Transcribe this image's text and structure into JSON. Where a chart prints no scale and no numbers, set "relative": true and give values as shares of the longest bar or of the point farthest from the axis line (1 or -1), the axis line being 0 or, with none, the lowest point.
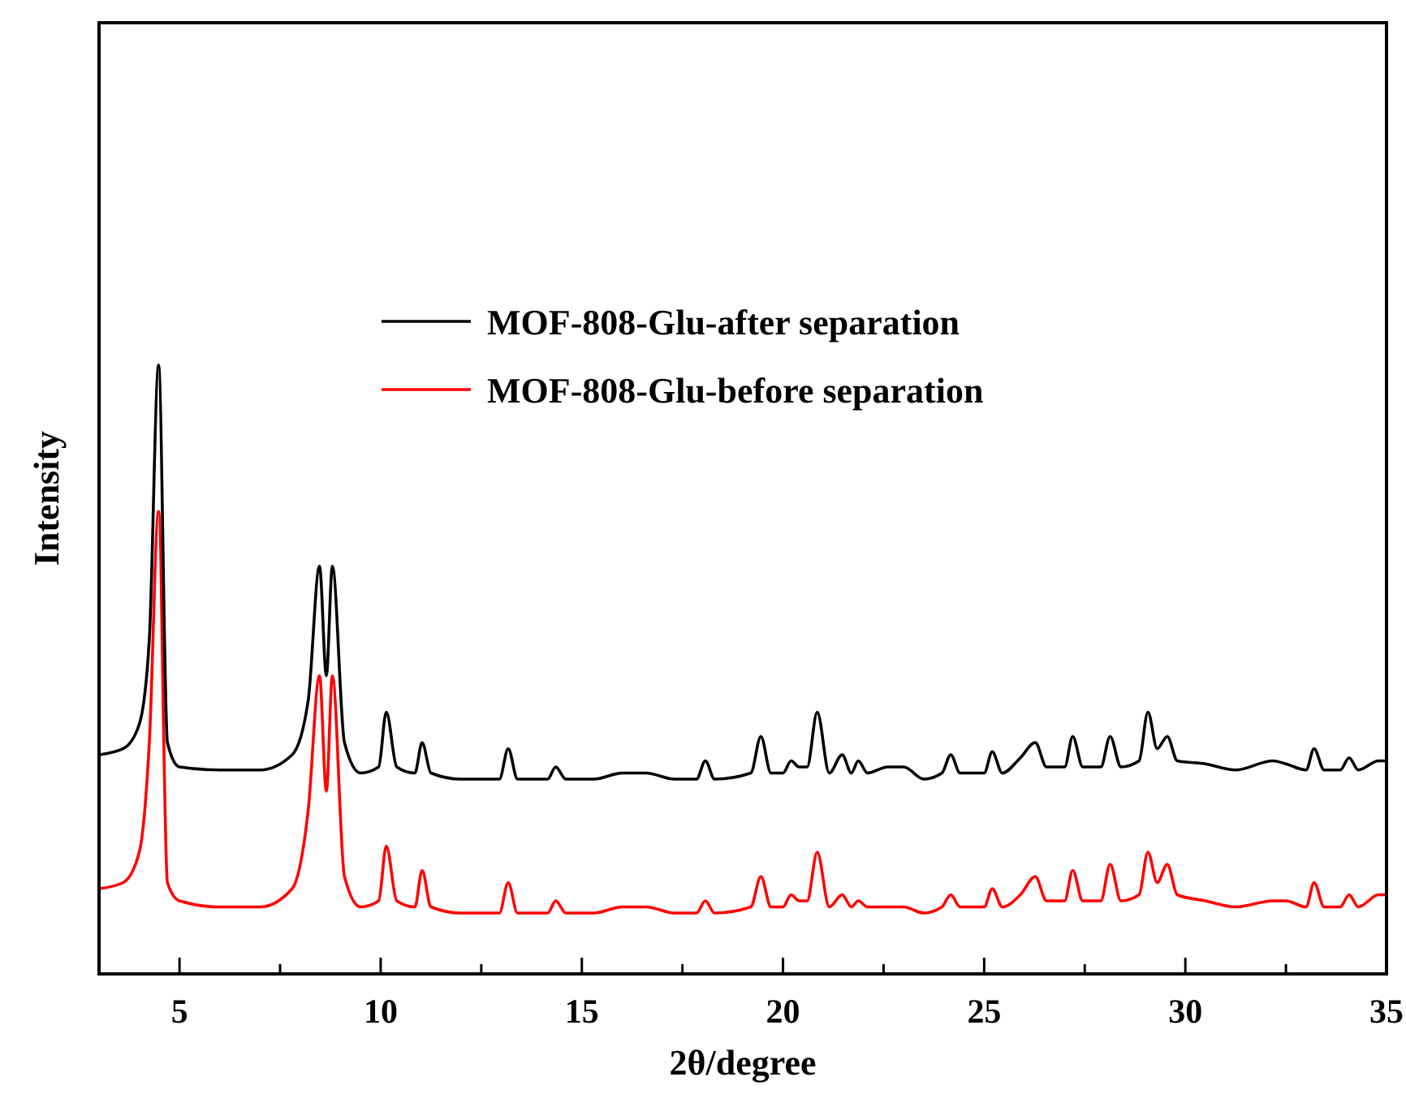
{
  "chart_data": {
    "type": "line",
    "relative": true,
    "xlabel": "2θ/degree",
    "ylabel": "Intensity",
    "legend": "top right",
    "line_style": "solid",
    "marker": "none",
    "xlim": [
      3,
      35
    ],
    "xticks": [
      5,
      {
        "value": 7.5,
        "label": null
      },
      10,
      {
        "value": 12.5,
        "label": null
      },
      15,
      {
        "value": 17.5,
        "label": null
      },
      20,
      {
        "value": 22.5,
        "label": null
      },
      25,
      {
        "value": 27.5,
        "label": null
      },
      30,
      {
        "value": 32.5,
        "label": null
      },
      35
    ],
    "x": [
      3,
      3.6,
      4.0,
      4.25,
      4.48,
      4.7,
      5.0,
      6,
      7,
      7.8,
      8.2,
      8.48,
      8.65,
      8.8,
      9.1,
      9.5,
      9.95,
      10.14,
      10.4,
      10.85,
      11.03,
      11.25,
      12,
      12.95,
      13.17,
      13.4,
      14.15,
      14.35,
      14.6,
      15.3,
      16.0,
      16.6,
      17.3,
      17.85,
      18.07,
      18.3,
      19.2,
      19.45,
      19.7,
      20.0,
      20.2,
      20.4,
      20.6,
      20.85,
      21.15,
      21.47,
      21.7,
      21.87,
      22.1,
      22.6,
      23.0,
      23.5,
      23.95,
      24.17,
      24.4,
      25.0,
      25.2,
      25.45,
      25.9,
      26.27,
      26.55,
      27.0,
      27.2,
      27.45,
      27.9,
      28.13,
      28.4,
      28.85,
      29.07,
      29.3,
      29.55,
      29.8,
      30.5,
      31.25,
      32.17,
      32.5,
      33.0,
      33.2,
      33.45,
      33.85,
      34.07,
      34.3,
      34.8,
      35
    ],
    "series": [
      {
        "name": "MOF-808-Glu-after separation",
        "color": "#000000",
        "values": [
          0.36,
          0.37,
          0.41,
          0.55,
          1.0,
          0.38,
          0.34,
          0.335,
          0.335,
          0.36,
          0.45,
          0.67,
          0.49,
          0.67,
          0.38,
          0.33,
          0.34,
          0.43,
          0.34,
          0.33,
          0.38,
          0.33,
          0.32,
          0.32,
          0.37,
          0.32,
          0.32,
          0.34,
          0.32,
          0.32,
          0.33,
          0.33,
          0.32,
          0.32,
          0.35,
          0.32,
          0.33,
          0.39,
          0.33,
          0.33,
          0.35,
          0.34,
          0.34,
          0.43,
          0.33,
          0.36,
          0.33,
          0.35,
          0.33,
          0.34,
          0.34,
          0.32,
          0.33,
          0.36,
          0.33,
          0.33,
          0.365,
          0.33,
          0.355,
          0.38,
          0.34,
          0.34,
          0.39,
          0.34,
          0.34,
          0.39,
          0.34,
          0.35,
          0.43,
          0.37,
          0.39,
          0.35,
          0.345,
          0.335,
          0.35,
          0.345,
          0.335,
          0.37,
          0.335,
          0.335,
          0.355,
          0.335,
          0.35,
          0.35
        ]
      },
      {
        "name": "MOF-808-Glu-before separation",
        "color": "#ff0000",
        "values": [
          0.14,
          0.15,
          0.2,
          0.38,
          0.76,
          0.15,
          0.12,
          0.11,
          0.11,
          0.14,
          0.27,
          0.49,
          0.3,
          0.49,
          0.16,
          0.11,
          0.12,
          0.21,
          0.12,
          0.11,
          0.17,
          0.11,
          0.1,
          0.1,
          0.15,
          0.1,
          0.1,
          0.12,
          0.1,
          0.1,
          0.11,
          0.11,
          0.1,
          0.1,
          0.12,
          0.1,
          0.11,
          0.16,
          0.11,
          0.11,
          0.13,
          0.12,
          0.12,
          0.2,
          0.11,
          0.13,
          0.11,
          0.12,
          0.11,
          0.11,
          0.11,
          0.1,
          0.11,
          0.13,
          0.11,
          0.11,
          0.14,
          0.11,
          0.13,
          0.16,
          0.12,
          0.12,
          0.17,
          0.12,
          0.12,
          0.18,
          0.12,
          0.13,
          0.2,
          0.15,
          0.18,
          0.13,
          0.12,
          0.11,
          0.12,
          0.12,
          0.11,
          0.15,
          0.11,
          0.11,
          0.13,
          0.11,
          0.13,
          0.13
        ]
      }
    ]
  }
}
